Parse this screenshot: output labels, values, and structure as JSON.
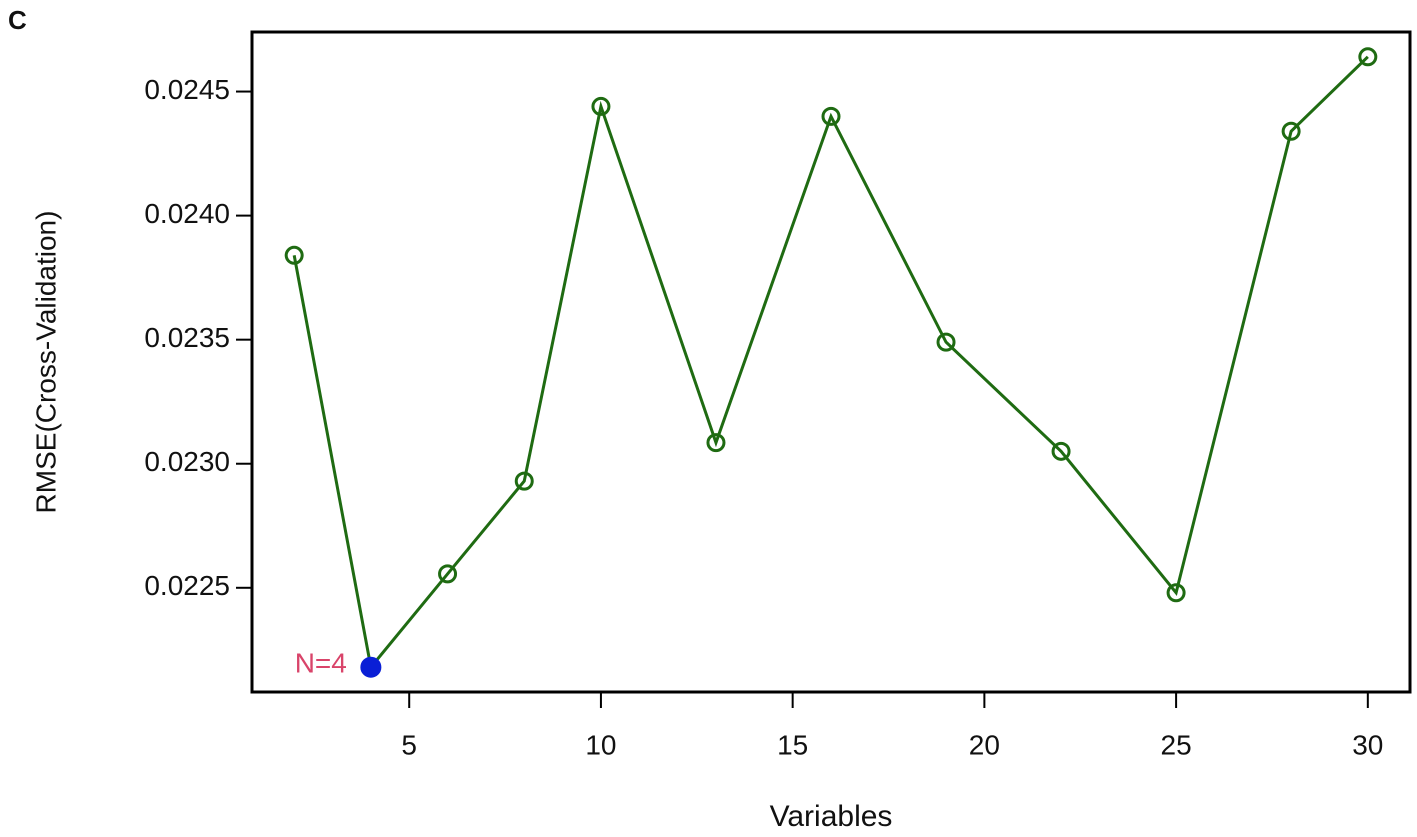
{
  "chart_data": {
    "type": "line",
    "panel_label": "C",
    "x_label": "Variables",
    "y_label": "RMSE(Cross-Validation)",
    "x": [
      2,
      4,
      6,
      8,
      10,
      13,
      16,
      19,
      22,
      25,
      28,
      30
    ],
    "series": [
      {
        "color": "#1f6b12",
        "values": [
          0.02384,
          0.02218,
          0.022556,
          0.02293,
          0.02444,
          0.023085,
          0.0244,
          0.02349,
          0.02305,
          0.02248,
          0.02434,
          0.02464
        ]
      }
    ],
    "highlight_color": "#0a1fd6",
    "annotation": "N=4",
    "annotation_color": "#d9446a",
    "xlim": [
      0.9,
      31.1
    ],
    "xticks": [
      5,
      10,
      15,
      20,
      25,
      30
    ],
    "ylim": [
      0.02208,
      0.02474
    ],
    "yticks": [
      0.0225,
      {
        "value": 0.023,
        "label": "0.0230"
      },
      0.0235,
      {
        "value": 0.024,
        "label": "0.0240"
      },
      0.0245
    ]
  }
}
